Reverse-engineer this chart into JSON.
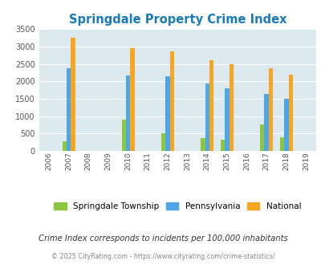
{
  "title": "Springdale Property Crime Index",
  "title_color": "#1a7abf",
  "all_years": [
    2006,
    2007,
    2008,
    2009,
    2010,
    2011,
    2012,
    2013,
    2014,
    2015,
    2016,
    2017,
    2018,
    2019
  ],
  "data_years": [
    2007,
    2010,
    2012,
    2014,
    2015,
    2017,
    2018
  ],
  "springdale": [
    270,
    900,
    510,
    380,
    330,
    760,
    390
  ],
  "pennsylvania": [
    2370,
    2175,
    2150,
    1950,
    1800,
    1630,
    1490
  ],
  "national": [
    3260,
    2960,
    2860,
    2600,
    2490,
    2370,
    2200
  ],
  "springdale_color": "#8dc63f",
  "pennsylvania_color": "#4da6e8",
  "national_color": "#f5a623",
  "background_color": "#dce9ef",
  "ylim": [
    0,
    3500
  ],
  "yticks": [
    0,
    500,
    1000,
    1500,
    2000,
    2500,
    3000,
    3500
  ],
  "footnote1": "Crime Index corresponds to incidents per 100,000 inhabitants",
  "footnote2": "© 2025 CityRating.com - https://www.cityrating.com/crime-statistics/",
  "bar_width": 0.22,
  "fig_width": 4.06,
  "fig_height": 3.3,
  "dpi": 100
}
